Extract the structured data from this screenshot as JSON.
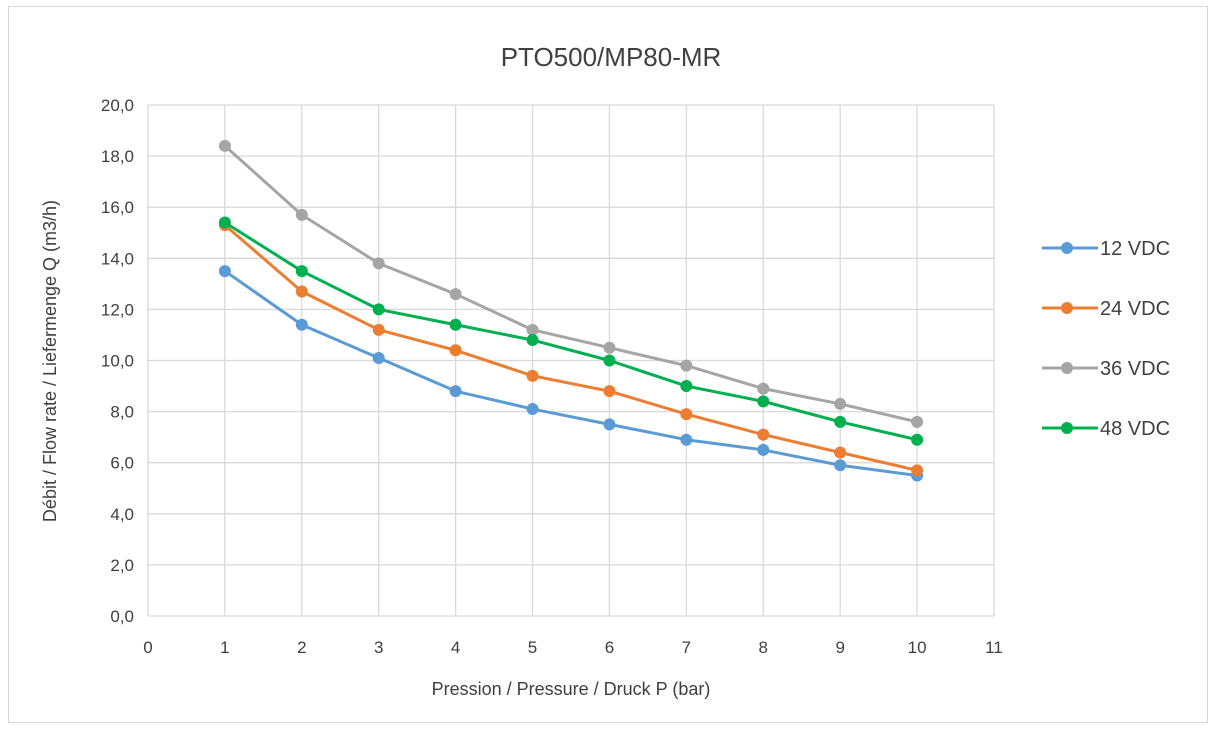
{
  "chart_data": {
    "type": "line",
    "title": "PTO500/MP80-MR",
    "xlabel": "Pression / Pressure / Druck P (bar)",
    "ylabel": "Débit / Flow rate / Liefermenge Q (m3/h)",
    "xlim": [
      0,
      11
    ],
    "ylim": [
      0,
      20
    ],
    "x_ticks": [
      "0",
      "1",
      "2",
      "3",
      "4",
      "5",
      "6",
      "7",
      "8",
      "9",
      "10",
      "11"
    ],
    "y_ticks": [
      "0,0",
      "2,0",
      "4,0",
      "6,0",
      "8,0",
      "10,0",
      "12,0",
      "14,0",
      "16,0",
      "18,0",
      "20,0"
    ],
    "grid": true,
    "legend_position": "right",
    "x": [
      1,
      2,
      3,
      4,
      5,
      6,
      7,
      8,
      9,
      10
    ],
    "series": [
      {
        "name": "12 VDC",
        "color": "#5b9bd5",
        "values": [
          13.5,
          11.4,
          10.1,
          8.8,
          8.1,
          7.5,
          6.9,
          6.5,
          5.9,
          5.5
        ]
      },
      {
        "name": "24 VDC",
        "color": "#ed7d31",
        "values": [
          15.3,
          12.7,
          11.2,
          10.4,
          9.4,
          8.8,
          7.9,
          7.1,
          6.4,
          5.7
        ]
      },
      {
        "name": "36 VDC",
        "color": "#a5a5a5",
        "values": [
          18.4,
          15.7,
          13.8,
          12.6,
          11.2,
          10.5,
          9.8,
          8.9,
          8.3,
          7.6
        ]
      },
      {
        "name": "48 VDC",
        "color": "#00b050",
        "values": [
          15.4,
          13.5,
          12.0,
          11.4,
          10.8,
          10.0,
          9.0,
          8.4,
          7.6,
          6.9
        ]
      }
    ]
  }
}
